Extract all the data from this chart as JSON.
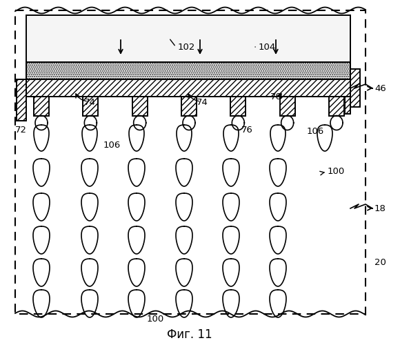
{
  "fig_width": 5.8,
  "fig_height": 5.0,
  "dpi": 100,
  "bg_color": "#ffffff",
  "title": "Фиг. 11"
}
